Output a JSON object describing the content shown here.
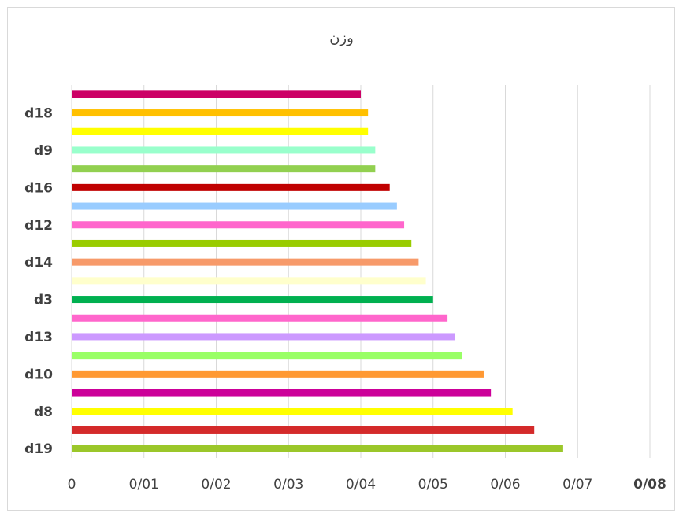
{
  "chart_data": {
    "type": "bar",
    "orientation": "horizontal",
    "title": "وزن",
    "xlabel": "",
    "ylabel": "",
    "xlim": [
      0,
      0.08
    ],
    "x_ticks": [
      {
        "value": 0,
        "label": "0"
      },
      {
        "value": 0.01,
        "label": "0/01"
      },
      {
        "value": 0.02,
        "label": "0/02"
      },
      {
        "value": 0.03,
        "label": "0/03"
      },
      {
        "value": 0.04,
        "label": "0/04"
      },
      {
        "value": 0.05,
        "label": "0/05"
      },
      {
        "value": 0.06,
        "label": "0/06"
      },
      {
        "value": 0.07,
        "label": "0/07"
      },
      {
        "value": 0.08,
        "label": "0/08"
      }
    ],
    "grid": "vertical",
    "legend": "none",
    "bars": [
      {
        "label": "d19",
        "show_label": true,
        "value": 0.068,
        "color": "#9BC72A"
      },
      {
        "label": "",
        "show_label": false,
        "value": 0.064,
        "color": "#D42A2A"
      },
      {
        "label": "d8",
        "show_label": true,
        "value": 0.061,
        "color": "#FFFF00"
      },
      {
        "label": "",
        "show_label": false,
        "value": 0.058,
        "color": "#CC0099"
      },
      {
        "label": "d10",
        "show_label": true,
        "value": 0.057,
        "color": "#FF9933"
      },
      {
        "label": "",
        "show_label": false,
        "value": 0.054,
        "color": "#99FF66"
      },
      {
        "label": "d13",
        "show_label": true,
        "value": 0.053,
        "color": "#CC99FF"
      },
      {
        "label": "",
        "show_label": false,
        "value": 0.052,
        "color": "#FF66CC"
      },
      {
        "label": "d3",
        "show_label": true,
        "value": 0.05,
        "color": "#00B050"
      },
      {
        "label": "",
        "show_label": false,
        "value": 0.049,
        "color": "#FFFFCC"
      },
      {
        "label": "d14",
        "show_label": true,
        "value": 0.048,
        "color": "#F79A6A"
      },
      {
        "label": "",
        "show_label": false,
        "value": 0.047,
        "color": "#99CC00"
      },
      {
        "label": "d12",
        "show_label": true,
        "value": 0.046,
        "color": "#FF66CC"
      },
      {
        "label": "",
        "show_label": false,
        "value": 0.045,
        "color": "#99CCFF"
      },
      {
        "label": "d16",
        "show_label": true,
        "value": 0.044,
        "color": "#C00000"
      },
      {
        "label": "",
        "show_label": false,
        "value": 0.042,
        "color": "#92D050"
      },
      {
        "label": "d9",
        "show_label": true,
        "value": 0.042,
        "color": "#99FFCC"
      },
      {
        "label": "",
        "show_label": false,
        "value": 0.041,
        "color": "#FFFF00"
      },
      {
        "label": "d18",
        "show_label": true,
        "value": 0.041,
        "color": "#FFC000"
      },
      {
        "label": "",
        "show_label": false,
        "value": 0.04,
        "color": "#CC0066"
      }
    ]
  }
}
